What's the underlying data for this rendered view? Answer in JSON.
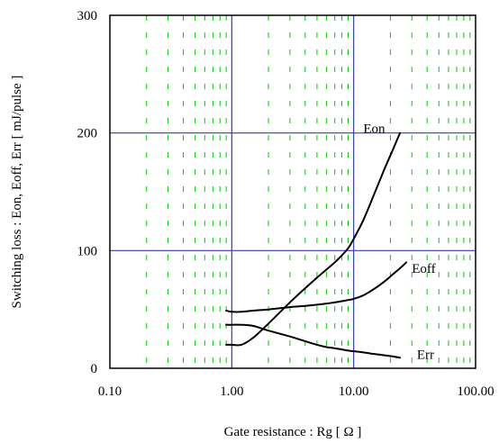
{
  "chart_data": {
    "type": "line",
    "title": "",
    "xlabel": "Gate resistance  :  Rg  [ Ω ]",
    "ylabel": "Switching loss  :  Eon, Eoff, Err  [ mJ/pulse ]",
    "xscale": "log",
    "xlim": [
      0.1,
      100
    ],
    "ylim": [
      0,
      300
    ],
    "x_ticks": [
      0.1,
      1,
      10,
      100
    ],
    "x_tick_labels": [
      "0.10",
      "1.00",
      "10.00",
      "100.00"
    ],
    "y_ticks": [
      0,
      100,
      200,
      300
    ],
    "y_tick_labels": [
      "0",
      "100",
      "200",
      "300"
    ],
    "major_grid": true,
    "minor_grid": true,
    "legend": "labels placed next to curves",
    "colors": {
      "major_grid": "#3a3aae",
      "minor_grid": "#00cc00",
      "curve": "#000000",
      "frame": "#000000"
    },
    "series": [
      {
        "name": "Eon",
        "x": [
          0.9,
          1.0,
          1.2,
          1.5,
          2.0,
          3.0,
          4.0,
          5.0,
          6.0,
          7.0,
          8.0,
          9.0,
          10.0,
          12.0,
          15.0,
          18.0,
          21.0,
          24.0
        ],
        "y": [
          20,
          20,
          20,
          26,
          38,
          56,
          68,
          77,
          84,
          90,
          96,
          102,
          110,
          126,
          150,
          170,
          186,
          200
        ]
      },
      {
        "name": "Eoff",
        "x": [
          0.9,
          1.0,
          1.2,
          1.5,
          2.0,
          3.0,
          4.0,
          5.0,
          6.0,
          7.0,
          8.0,
          9.0,
          10.0,
          12.0,
          15.0,
          18.0,
          21.0,
          24.0,
          27.0
        ],
        "y": [
          49,
          48,
          48,
          49,
          50,
          52,
          53,
          54,
          55,
          56,
          57,
          58,
          59,
          62,
          68,
          74,
          80,
          85,
          90
        ]
      },
      {
        "name": "Err",
        "x": [
          0.9,
          1.0,
          1.2,
          1.5,
          2.0,
          3.0,
          4.0,
          5.0,
          6.0,
          7.0,
          8.0,
          9.0,
          10.0,
          12.0,
          15.0,
          18.0,
          21.0,
          24.0
        ],
        "y": [
          37,
          37,
          37,
          36,
          32,
          27,
          23,
          20,
          18,
          17,
          16,
          15,
          14.5,
          13.5,
          12,
          11,
          10,
          9
        ]
      }
    ]
  }
}
